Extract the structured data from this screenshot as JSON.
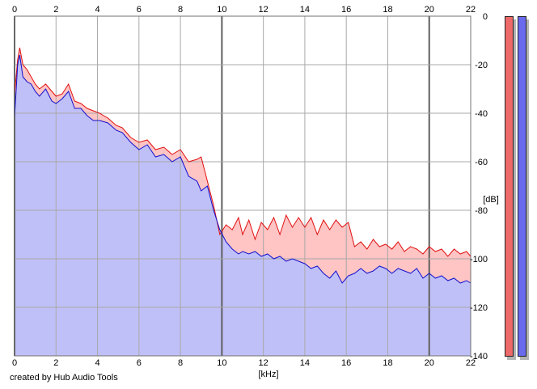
{
  "chart_data": {
    "type": "area",
    "x_ticks": [
      0,
      2,
      4,
      6,
      8,
      10,
      12,
      14,
      16,
      18,
      20,
      22
    ],
    "y_ticks": [
      0,
      -20,
      -40,
      -60,
      -80,
      -100,
      -120,
      -140
    ],
    "xlim": [
      0,
      22
    ],
    "ylim": [
      -140,
      0
    ],
    "xlabel": "[kHz]",
    "ylabel": "[dB]",
    "grid": true,
    "series": [
      {
        "color": "#e01010",
        "fill": "#ffc4c4",
        "x": [
          0.0,
          0.15,
          0.25,
          0.4,
          0.6,
          0.8,
          1.0,
          1.2,
          1.5,
          1.8,
          2.0,
          2.3,
          2.6,
          2.9,
          3.2,
          3.5,
          3.8,
          4.1,
          4.5,
          4.9,
          5.2,
          5.6,
          6.0,
          6.4,
          6.8,
          7.2,
          7.6,
          8.0,
          8.4,
          8.8,
          9.0,
          9.3,
          9.6,
          9.9,
          10.2,
          10.5,
          10.8,
          11.0,
          11.3,
          11.6,
          11.9,
          12.2,
          12.5,
          12.8,
          13.1,
          13.4,
          13.7,
          14.0,
          14.3,
          14.6,
          14.9,
          15.2,
          15.5,
          15.8,
          16.1,
          16.4,
          16.7,
          17.0,
          17.3,
          17.6,
          17.9,
          18.2,
          18.5,
          18.8,
          19.1,
          19.4,
          19.7,
          20.0,
          20.3,
          20.6,
          20.9,
          21.2,
          21.5,
          21.8,
          22.0
        ],
        "y": [
          -32,
          -18,
          -13,
          -20,
          -22,
          -25,
          -28,
          -30,
          -28,
          -31,
          -33,
          -32,
          -28,
          -35,
          -36,
          -38,
          -39,
          -40,
          -42,
          -45,
          -46,
          -50,
          -52,
          -51,
          -55,
          -54,
          -57,
          -55,
          -60,
          -59,
          -58,
          -68,
          -78,
          -90,
          -86,
          -88,
          -83,
          -90,
          -84,
          -92,
          -85,
          -88,
          -83,
          -90,
          -82,
          -87,
          -83,
          -87,
          -83,
          -90,
          -84,
          -88,
          -84,
          -87,
          -85,
          -95,
          -93,
          -96,
          -92,
          -95,
          -94,
          -96,
          -93,
          -97,
          -95,
          -96,
          -98,
          -95,
          -97,
          -96,
          -99,
          -96,
          -98,
          -97,
          -99
        ]
      },
      {
        "color": "#1010d0",
        "fill": "#c0c0f8",
        "x": [
          0.0,
          0.15,
          0.25,
          0.4,
          0.6,
          0.8,
          1.0,
          1.2,
          1.5,
          1.8,
          2.0,
          2.3,
          2.6,
          2.9,
          3.2,
          3.5,
          3.8,
          4.1,
          4.5,
          4.9,
          5.2,
          5.6,
          6.0,
          6.4,
          6.8,
          7.2,
          7.6,
          8.0,
          8.4,
          8.8,
          9.0,
          9.3,
          9.6,
          9.9,
          10.2,
          10.5,
          10.8,
          11.0,
          11.3,
          11.6,
          11.9,
          12.2,
          12.5,
          12.8,
          13.1,
          13.4,
          13.7,
          14.0,
          14.3,
          14.6,
          14.9,
          15.2,
          15.5,
          15.8,
          16.1,
          16.4,
          16.7,
          17.0,
          17.3,
          17.6,
          17.9,
          18.2,
          18.5,
          18.8,
          19.1,
          19.4,
          19.7,
          20.0,
          20.3,
          20.6,
          20.9,
          21.2,
          21.5,
          21.8,
          22.0
        ],
        "y": [
          -42,
          -20,
          -16,
          -25,
          -27,
          -28,
          -31,
          -33,
          -30,
          -35,
          -36,
          -34,
          -31,
          -38,
          -38,
          -41,
          -43,
          -43,
          -44,
          -47,
          -48,
          -52,
          -55,
          -53,
          -58,
          -57,
          -60,
          -58,
          -66,
          -68,
          -72,
          -70,
          -80,
          -88,
          -93,
          -96,
          -98,
          -97,
          -98,
          -97,
          -99,
          -98,
          -100,
          -99,
          -101,
          -100,
          -101,
          -102,
          -104,
          -103,
          -106,
          -108,
          -105,
          -110,
          -107,
          -106,
          -104,
          -106,
          -105,
          -103,
          -104,
          -106,
          -104,
          -105,
          -106,
          -104,
          -108,
          -106,
          -108,
          -107,
          -109,
          -108,
          -110,
          -109,
          -110
        ]
      }
    ],
    "level_meters": [
      {
        "color": "#ee6a6a"
      },
      {
        "color": "#6a6aee"
      }
    ]
  },
  "footer": {
    "credit": "created by Hub Audio Tools"
  }
}
